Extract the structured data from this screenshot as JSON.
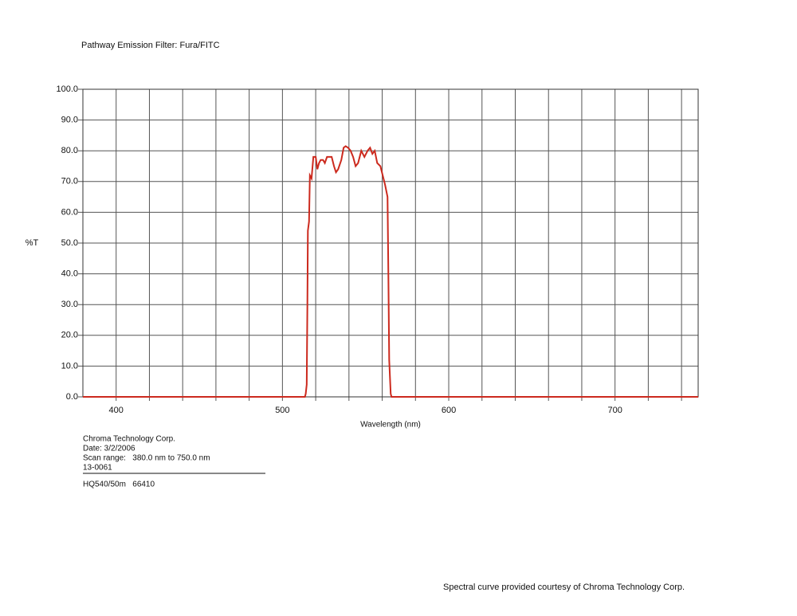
{
  "chart_data": {
    "type": "line",
    "title": "Pathway Emission Filter: Fura/FITC",
    "xlabel": "Wavelength (nm)",
    "ylabel": "%T",
    "xlim": [
      380,
      750
    ],
    "ylim": [
      0,
      100
    ],
    "xticks": [
      400,
      500,
      600,
      700
    ],
    "xgrid": [
      400,
      420,
      440,
      460,
      480,
      500,
      520,
      540,
      560,
      580,
      600,
      620,
      640,
      660,
      680,
      700,
      720,
      740
    ],
    "yticks": [
      {
        "value": 0,
        "label": "0.0"
      },
      {
        "value": 10,
        "label": "10.0"
      },
      {
        "value": 20,
        "label": "20.0"
      },
      {
        "value": 30,
        "label": "30.0"
      },
      {
        "value": 40,
        "label": "40.0"
      },
      {
        "value": 50,
        "label": "50.0"
      },
      {
        "value": 60,
        "label": "60.0"
      },
      {
        "value": 70,
        "label": "70.0"
      },
      {
        "value": 80,
        "label": "80.0"
      },
      {
        "value": 90,
        "label": "90.0"
      },
      {
        "value": 100,
        "label": "100.0"
      }
    ],
    "grid": true,
    "series": [
      {
        "name": "HQ540/50m",
        "color": "#cc2a1e",
        "x": [
          380,
          513.5,
          514,
          514.6,
          515,
          515.3,
          516,
          516.5,
          517.5,
          518.6,
          520,
          521,
          522,
          523,
          524.4,
          525.5,
          526.8,
          528,
          529.6,
          531,
          532.2,
          533.5,
          535.4,
          536.8,
          538,
          539.5,
          541,
          542.5,
          544,
          545.5,
          547.4,
          549.3,
          551.2,
          552.7,
          554.1,
          555.5,
          557,
          558.9,
          560.3,
          561.7,
          563.2,
          563.7,
          564.2,
          565.1,
          565.6,
          750
        ],
        "values": [
          0,
          0,
          1,
          4,
          30,
          54,
          57,
          72,
          71,
          78,
          78,
          74,
          76,
          77,
          77,
          76,
          78,
          78,
          78,
          75,
          73,
          74,
          77,
          81,
          81.5,
          81,
          80,
          78,
          75,
          76,
          80,
          78,
          80,
          81,
          79,
          80,
          76,
          75,
          72,
          69,
          65,
          40,
          12,
          1,
          0,
          0
        ]
      }
    ],
    "annotations": [
      "Chroma Technology Corp.",
      "Date: 3/2/2006",
      "Scan range:   380.0 nm to 750.0 nm",
      "13-0061",
      "HQ540/50m   66410",
      "Spectral curve provided courtesy of Chroma Technology Corp."
    ]
  }
}
